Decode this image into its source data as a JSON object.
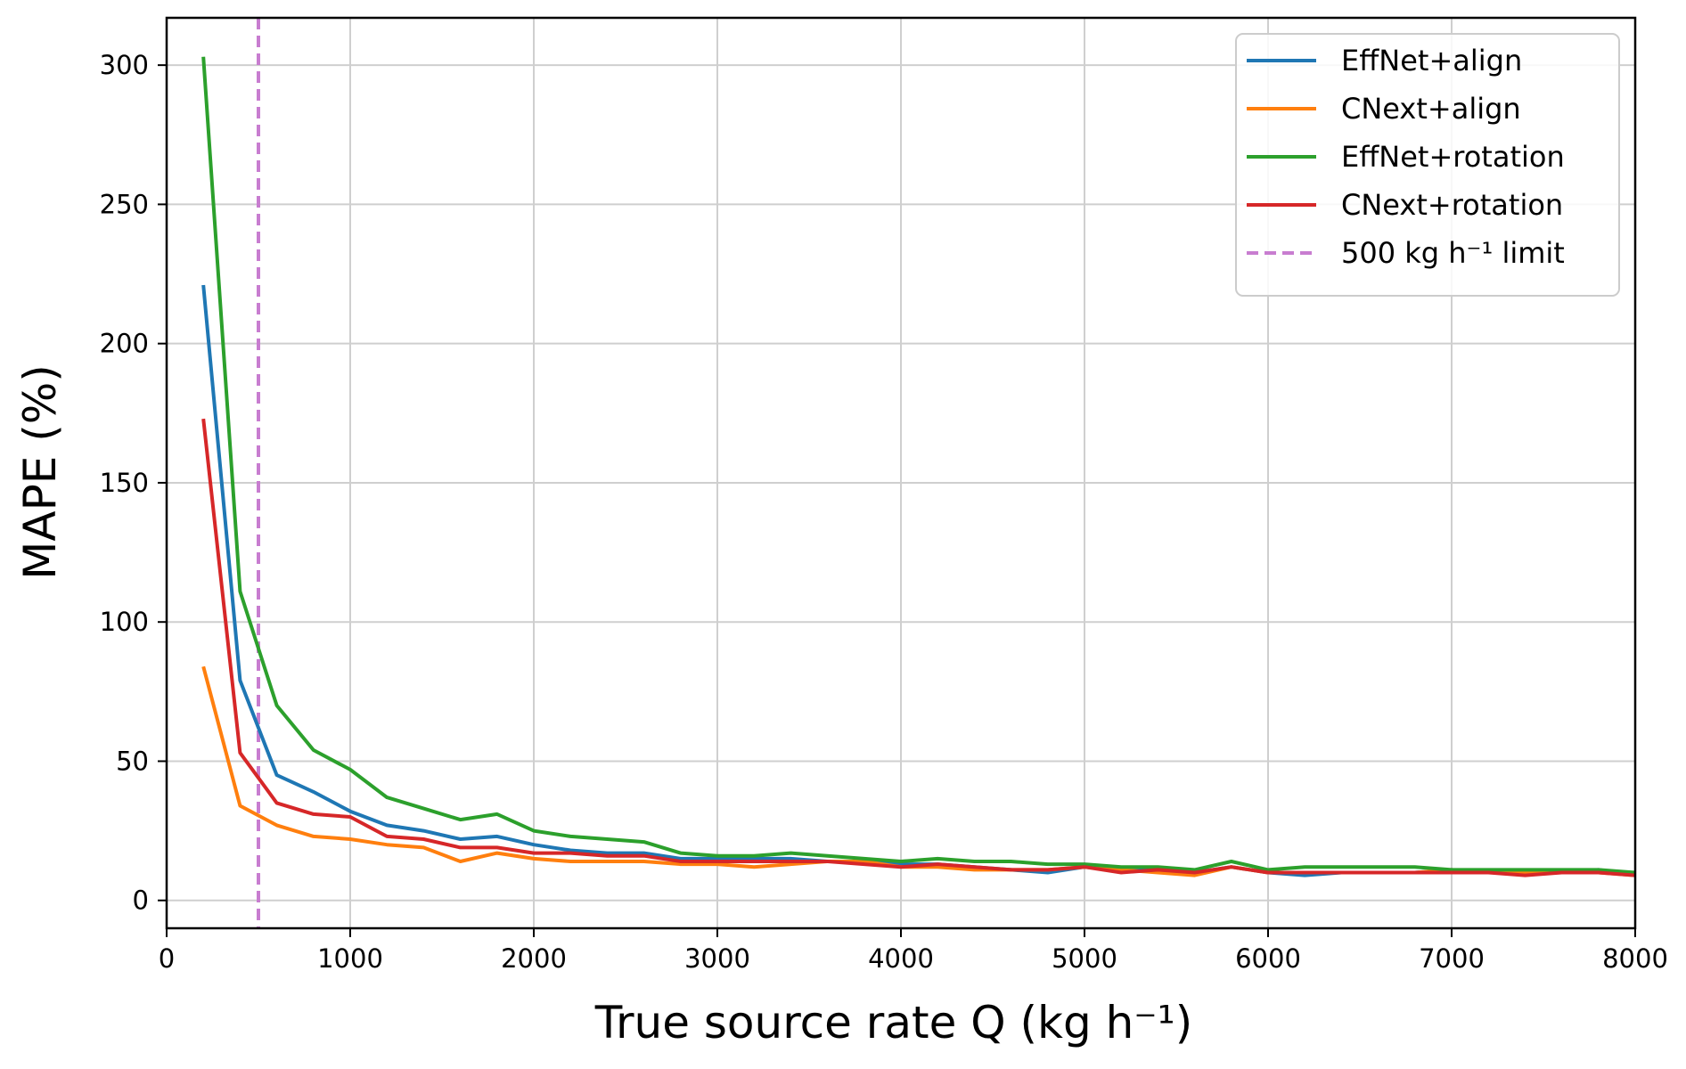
{
  "chart_data": {
    "type": "line",
    "title": "",
    "xlabel": "True source rate Q (kg h⁻¹)",
    "ylabel": "MAPE (%)",
    "xlim": [
      0,
      8000
    ],
    "ylim": [
      -10,
      317
    ],
    "x_ticks": [
      "0",
      "1000",
      "2000",
      "3000",
      "4000",
      "5000",
      "6000",
      "7000",
      "8000"
    ],
    "y_ticks": [
      "0",
      "50",
      "100",
      "150",
      "200",
      "250",
      "300"
    ],
    "grid": true,
    "legend_position": "top-right",
    "x": [
      200,
      400,
      600,
      800,
      1000,
      1200,
      1400,
      1600,
      1800,
      2000,
      2200,
      2400,
      2600,
      2800,
      3000,
      3200,
      3400,
      3600,
      3800,
      4000,
      4200,
      4400,
      4600,
      4800,
      5000,
      5200,
      5400,
      5600,
      5800,
      6000,
      6200,
      6400,
      6600,
      6800,
      7000,
      7200,
      7400,
      7600,
      7800,
      8000
    ],
    "series": [
      {
        "name": "EffNet+align",
        "color": "#1f77b4",
        "values": [
          221,
          79,
          45,
          39,
          32,
          27,
          25,
          22,
          23,
          20,
          18,
          17,
          17,
          15,
          15,
          15,
          15,
          14,
          14,
          13,
          13,
          12,
          11,
          10,
          12,
          11,
          11,
          10,
          12,
          10,
          9,
          10,
          10,
          10,
          11,
          10,
          10,
          10,
          11,
          9
        ]
      },
      {
        "name": "CNext+align",
        "color": "#ff7f0e",
        "values": [
          84,
          34,
          27,
          23,
          22,
          20,
          19,
          14,
          17,
          15,
          14,
          14,
          14,
          13,
          13,
          12,
          13,
          14,
          14,
          12,
          12,
          11,
          11,
          11,
          12,
          11,
          10,
          9,
          12,
          10,
          10,
          10,
          10,
          10,
          11,
          10,
          10,
          10,
          10,
          9
        ]
      },
      {
        "name": "EffNet+rotation",
        "color": "#2ca02c",
        "values": [
          303,
          111,
          70,
          54,
          47,
          37,
          33,
          29,
          31,
          25,
          23,
          22,
          21,
          17,
          16,
          16,
          17,
          16,
          15,
          14,
          15,
          14,
          14,
          13,
          13,
          12,
          12,
          11,
          14,
          11,
          12,
          12,
          12,
          12,
          11,
          11,
          11,
          11,
          11,
          10
        ]
      },
      {
        "name": "CNext+rotation",
        "color": "#d62728",
        "values": [
          173,
          53,
          35,
          31,
          30,
          23,
          22,
          19,
          19,
          17,
          17,
          16,
          16,
          14,
          14,
          14,
          14,
          14,
          13,
          12,
          13,
          12,
          11,
          11,
          12,
          10,
          11,
          10,
          12,
          10,
          10,
          10,
          10,
          10,
          10,
          10,
          9,
          10,
          10,
          9
        ]
      }
    ],
    "reference_lines": [
      {
        "name": "500 kg h⁻¹ limit",
        "orientation": "vertical",
        "x": 500,
        "style": "dashed",
        "color": "#c87dd0"
      }
    ]
  }
}
